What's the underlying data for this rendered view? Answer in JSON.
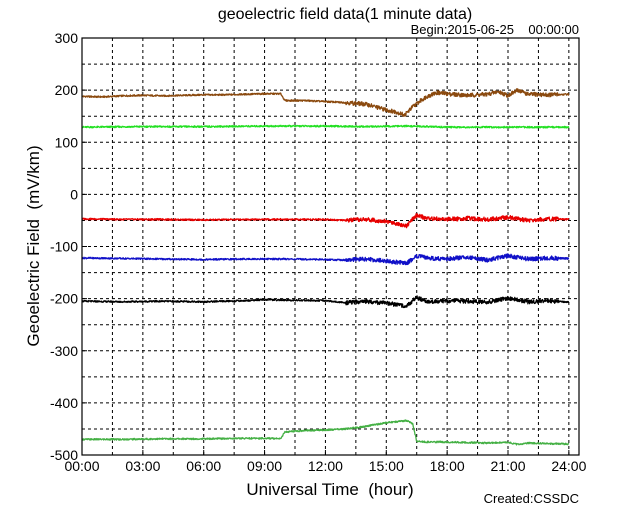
{
  "chart_data": {
    "type": "line",
    "title": "geoelectric field data(1 minute data)",
    "subtitle": "Begin:2015-06-25    00:00:00",
    "credit": "Created:CSSDC",
    "xlabel": "Universal Time  (hour)",
    "ylabel": "Geoelectric Field  (mV/km)",
    "xlim": [
      0,
      24.5
    ],
    "ylim": [
      -500,
      300
    ],
    "grid": true,
    "x_ticks": [
      "00:00",
      "03:00",
      "06:00",
      "09:00",
      "12:00",
      "15:00",
      "18:00",
      "21:00",
      "24:00"
    ],
    "y_ticks": [
      "300",
      "200",
      "100",
      "0",
      "-100",
      "-200",
      "-300",
      "-400",
      "-500"
    ],
    "x_tick_values": [
      0,
      3,
      6,
      9,
      12,
      15,
      18,
      21,
      24
    ],
    "y_tick_values": [
      300,
      200,
      100,
      0,
      -100,
      -200,
      -300,
      -400,
      -500
    ],
    "series": [
      {
        "color": "#8B4A0F",
        "x": [
          0,
          1,
          2,
          3,
          4,
          5,
          6,
          7,
          8,
          9,
          9.8,
          10,
          11,
          12,
          13,
          14,
          15,
          15.5,
          15.9,
          16.3,
          16.7,
          17,
          17.5,
          18,
          19,
          20,
          20.5,
          21,
          21.5,
          22,
          23,
          24
        ],
        "y": [
          188,
          187,
          189,
          190,
          189,
          190,
          191,
          191,
          192,
          193,
          193,
          180,
          180,
          178,
          176,
          173,
          162,
          158,
          152,
          168,
          180,
          188,
          195,
          193,
          190,
          192,
          197,
          190,
          200,
          192,
          191,
          192
        ]
      },
      {
        "color": "#22E022",
        "x": [
          0,
          3,
          6,
          9,
          12,
          14,
          16,
          18,
          21,
          24
        ],
        "y": [
          129,
          130,
          130,
          131,
          131,
          130,
          131,
          129,
          129,
          129
        ]
      },
      {
        "color": "#E80000",
        "x": [
          0,
          2,
          4,
          6,
          8,
          10,
          12,
          13,
          14,
          15,
          16,
          16.5,
          17,
          18,
          19,
          20,
          21,
          22,
          23,
          24
        ],
        "y": [
          -47,
          -48,
          -48,
          -49,
          -48,
          -48,
          -48,
          -50,
          -48,
          -52,
          -60,
          -40,
          -46,
          -48,
          -46,
          -48,
          -44,
          -50,
          -47,
          -48
        ]
      },
      {
        "color": "#1010C8",
        "x": [
          0,
          2,
          4,
          6,
          8,
          10,
          12,
          13,
          14,
          15,
          16,
          16.5,
          17,
          18,
          19,
          20,
          21,
          22,
          23,
          24
        ],
        "y": [
          -122,
          -123,
          -124,
          -125,
          -124,
          -124,
          -125,
          -126,
          -124,
          -128,
          -132,
          -118,
          -122,
          -124,
          -120,
          -126,
          -118,
          -124,
          -122,
          -123
        ]
      },
      {
        "color": "#000000",
        "x": [
          0,
          2,
          4,
          6,
          8,
          9,
          10,
          12,
          13,
          14,
          15,
          16,
          16.5,
          17,
          18,
          19,
          20,
          21,
          22,
          23,
          24
        ],
        "y": [
          -205,
          -206,
          -205,
          -206,
          -204,
          -202,
          -203,
          -204,
          -208,
          -205,
          -209,
          -214,
          -198,
          -206,
          -204,
          -205,
          -207,
          -199,
          -206,
          -204,
          -207
        ]
      },
      {
        "color": "#44B044",
        "x": [
          0,
          2,
          4,
          6,
          8,
          9.8,
          10,
          11,
          12,
          13,
          14,
          15,
          16,
          16.3,
          16.5,
          17,
          18,
          19,
          20,
          21,
          21.5,
          22,
          23,
          24
        ],
        "y": [
          -470,
          -470,
          -469,
          -469,
          -468,
          -468,
          -456,
          -453,
          -452,
          -450,
          -445,
          -438,
          -434,
          -440,
          -474,
          -475,
          -475,
          -476,
          -477,
          -476,
          -480,
          -477,
          -478,
          -479
        ]
      }
    ]
  }
}
